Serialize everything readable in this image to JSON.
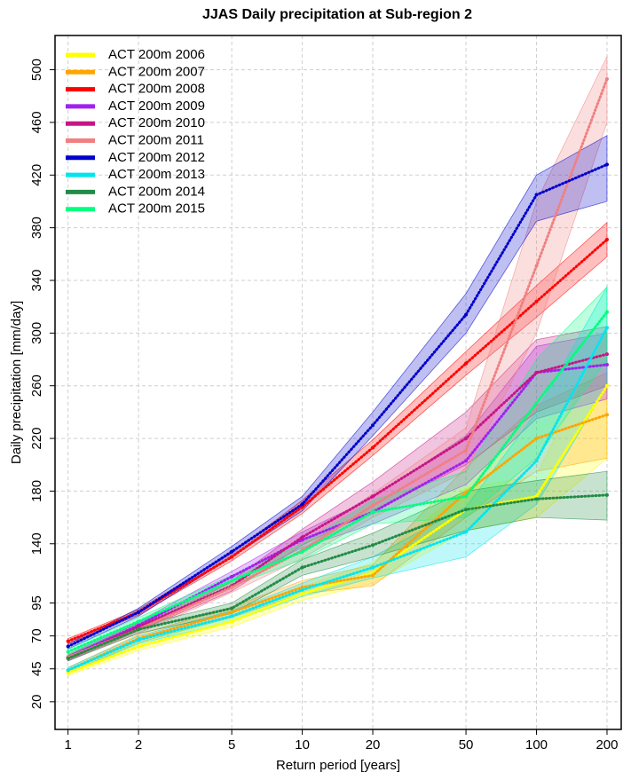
{
  "chart_data": {
    "type": "line",
    "title": "JJAS Daily precipitation at Sub-region 2",
    "x_label": "Return period [years]",
    "y_label": "Daily precipitation [mm/day]",
    "x_scale": "log",
    "xlim": [
      0.88,
      230
    ],
    "ylim": [
      -1,
      526
    ],
    "xticks": [
      1,
      2,
      5,
      10,
      20,
      50,
      100,
      200
    ],
    "yticks": [
      20,
      45,
      70,
      95,
      140,
      180,
      220,
      260,
      300,
      340,
      380,
      420,
      460,
      500
    ],
    "grid": true,
    "legend": "top-left",
    "x": [
      1,
      2,
      5,
      10,
      20,
      50,
      100,
      200
    ],
    "series": [
      {
        "name": "ACT 200m 2006",
        "color": "#ffff00",
        "values": [
          42,
          62,
          81,
          102,
          118,
          166,
          176,
          260
        ],
        "lower": [
          40,
          59,
          77,
          97,
          110,
          150,
          160,
          205
        ],
        "upper": [
          44,
          65,
          85,
          107,
          126,
          182,
          192,
          300
        ]
      },
      {
        "name": "ACT 200m 2007",
        "color": "#ffa500",
        "values": [
          44,
          68,
          88,
          107,
          116,
          179,
          220,
          238
        ],
        "lower": [
          42,
          65,
          84,
          102,
          108,
          160,
          195,
          205
        ],
        "upper": [
          46,
          71,
          92,
          112,
          124,
          198,
          245,
          270
        ]
      },
      {
        "name": "ACT 200m 2008",
        "color": "#ff0000",
        "values": [
          66,
          88,
          130,
          168,
          213,
          277,
          324,
          371
        ],
        "lower": [
          64,
          86,
          127,
          163,
          207,
          268,
          312,
          358
        ],
        "upper": [
          68,
          90,
          133,
          173,
          219,
          286,
          336,
          384
        ]
      },
      {
        "name": "ACT 200m 2009",
        "color": "#a020f0",
        "values": [
          54,
          78,
          115,
          143,
          164,
          203,
          270,
          276
        ],
        "lower": [
          52,
          75,
          111,
          137,
          155,
          185,
          235,
          250
        ],
        "upper": [
          56,
          81,
          119,
          149,
          175,
          222,
          290,
          300
        ]
      },
      {
        "name": "ACT 200m 2010",
        "color": "#c71585",
        "values": [
          53,
          77,
          108,
          145,
          176,
          220,
          270,
          284
        ],
        "lower": [
          51,
          74,
          104,
          139,
          165,
          200,
          240,
          260
        ],
        "upper": [
          55,
          80,
          112,
          151,
          187,
          240,
          295,
          305
        ]
      },
      {
        "name": "ACT 200m 2011",
        "color": "#f08080",
        "values": [
          54,
          75,
          107,
          135,
          169,
          211,
          351,
          493
        ],
        "lower": [
          52,
          72,
          103,
          129,
          160,
          195,
          300,
          460
        ],
        "upper": [
          56,
          78,
          111,
          141,
          178,
          228,
          400,
          510
        ]
      },
      {
        "name": "ACT 200m 2012",
        "color": "#0000cd",
        "values": [
          62,
          88,
          134,
          170,
          230,
          314,
          405,
          428
        ],
        "lower": [
          60,
          85,
          130,
          165,
          222,
          300,
          385,
          400
        ],
        "upper": [
          64,
          91,
          138,
          176,
          240,
          330,
          420,
          450
        ]
      },
      {
        "name": "ACT 200m 2013",
        "color": "#00e5ee",
        "values": [
          44,
          67,
          85,
          105,
          122,
          149,
          203,
          304
        ],
        "lower": [
          42,
          64,
          81,
          100,
          114,
          130,
          170,
          260
        ],
        "upper": [
          46,
          70,
          89,
          110,
          130,
          168,
          240,
          335
        ]
      },
      {
        "name": "ACT 200m 2014",
        "color": "#228b45",
        "values": [
          53,
          75,
          91,
          122,
          139,
          166,
          174,
          177
        ],
        "lower": [
          51,
          72,
          87,
          116,
          130,
          150,
          160,
          158
        ],
        "upper": [
          55,
          78,
          95,
          128,
          148,
          180,
          188,
          195
        ]
      },
      {
        "name": "ACT 200m 2015",
        "color": "#00ff7f",
        "values": [
          58,
          81,
          112,
          134,
          164,
          176,
          247,
          316
        ],
        "lower": [
          56,
          78,
          108,
          128,
          155,
          160,
          205,
          280
        ],
        "upper": [
          60,
          84,
          116,
          140,
          173,
          195,
          280,
          335
        ]
      }
    ]
  }
}
